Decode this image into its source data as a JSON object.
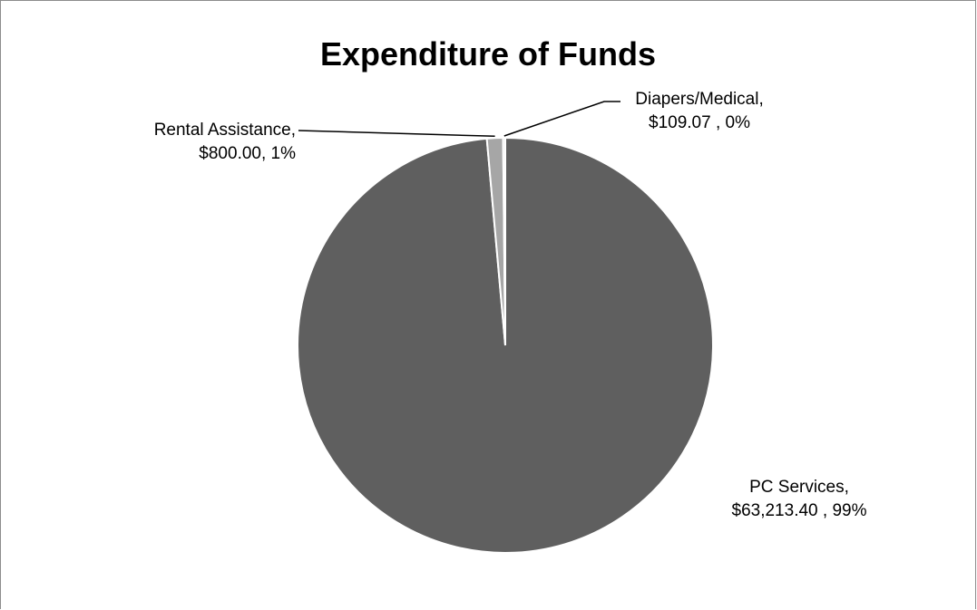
{
  "chart_data": {
    "type": "pie",
    "title": "Expenditure of Funds",
    "categories": [
      "PC Services",
      "Rental Assistance",
      "Diapers/Medical"
    ],
    "values": [
      63213.4,
      800.0,
      109.07
    ],
    "colors": [
      "#5f5f5f",
      "#a6a6a6",
      "#d9d9d9"
    ],
    "slice_border_color": "#ffffff",
    "labels": [
      {
        "name": "PC Services,",
        "text": "$63,213.40 , 99%"
      },
      {
        "name": "Rental Assistance,",
        "text": "$800.00,  1%"
      },
      {
        "name": "Diapers/Medical,",
        "text": "$109.07 , 0%"
      }
    ],
    "legend": "none"
  }
}
